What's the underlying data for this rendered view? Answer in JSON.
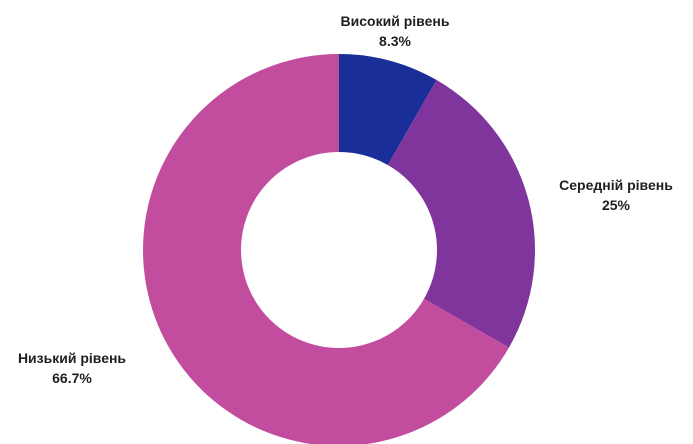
{
  "chart_data": {
    "type": "pie",
    "donut": true,
    "title": "",
    "categories": [
      "Високий рівень",
      "Середній рівень",
      "Низький рівень"
    ],
    "values": [
      8.3,
      25,
      66.7
    ],
    "labels": [
      "8.3%",
      "25%",
      "66.7%"
    ],
    "colors": [
      "#1a2e99",
      "#80359c",
      "#c24d9e"
    ],
    "legend": "none",
    "start_angle_deg": 0,
    "direction": "clockwise"
  }
}
